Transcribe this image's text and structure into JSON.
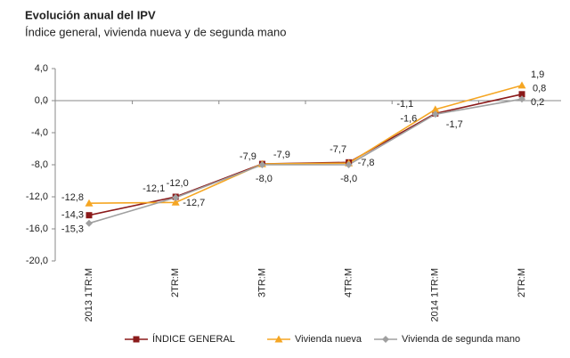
{
  "chart_data": {
    "type": "line",
    "title": "Evolución anual del IPV",
    "subtitle": "Índice general, vivienda  nueva  y de segunda mano",
    "categories": [
      "2013 1TR:M",
      "2TR:M",
      "3TR:M",
      "4TR:M",
      "2014 1TR:M",
      "2TR:M"
    ],
    "ylim": [
      -20,
      4
    ],
    "yticks": [
      {
        "value": -20,
        "label": "-20,0"
      },
      {
        "value": -16,
        "label": "-16,0"
      },
      {
        "value": -12,
        "label": "-12,0"
      },
      {
        "value": -8,
        "label": "-8,0"
      },
      {
        "value": -4,
        "label": "-4,0"
      },
      {
        "value": 0,
        "label": "0,0"
      },
      {
        "value": 4,
        "label": "4,0"
      }
    ],
    "grid": false,
    "legend": "bottom",
    "series": [
      {
        "name": "ÍNDICE GENERAL",
        "color": "#8b1a1a",
        "marker": "square",
        "values": [
          -14.3,
          -12.0,
          -7.9,
          -7.7,
          -1.6,
          0.8
        ],
        "value_labels": [
          "-14,3",
          "-12,0",
          "-7,9",
          "-7,7",
          "-1,6",
          "0,8"
        ]
      },
      {
        "name": "Vivienda nueva",
        "color": "#f5a623",
        "marker": "triangle",
        "values": [
          -12.8,
          -12.7,
          -7.9,
          -7.8,
          -1.1,
          1.9
        ],
        "value_labels": [
          "-12,8",
          "-12,7",
          "-7,9",
          "-7,8",
          "-1,1",
          "1,9"
        ]
      },
      {
        "name": "Vivienda de segunda mano",
        "color": "#a0a0a0",
        "marker": "diamond",
        "values": [
          -15.3,
          -12.1,
          -8.0,
          -8.0,
          -1.7,
          0.2
        ],
        "value_labels": [
          "-15,3",
          "-12,1",
          "-8,0",
          "-8,0",
          "-1,7",
          "0,2"
        ]
      }
    ]
  }
}
